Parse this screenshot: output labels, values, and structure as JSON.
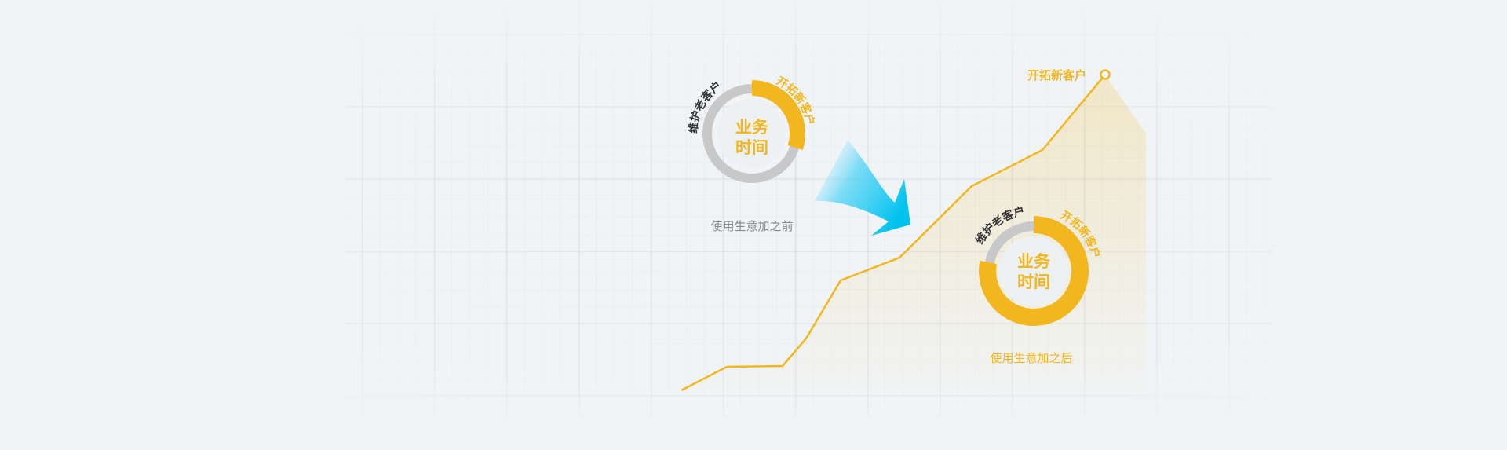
{
  "colors": {
    "background": "#f1f4f7",
    "accent": "#f2b71f",
    "ring_gray": "#c8c8c8",
    "arrow": "#00c2ef",
    "label_dark": "#333333",
    "caption_gray": "#888888"
  },
  "before": {
    "maintain_label": "维护老客户",
    "new_label": "开拓新客户",
    "center_line1": "业务",
    "center_line2": "时间",
    "caption": "使用生意加之前",
    "new_share": 0.3
  },
  "after": {
    "maintain_label": "维护老客户",
    "new_label": "开拓新客户",
    "center_line1": "业务",
    "center_line2": "时间",
    "caption": "使用生意加之后",
    "new_share": 0.78
  },
  "trend": {
    "end_label": "开拓新客户"
  }
}
